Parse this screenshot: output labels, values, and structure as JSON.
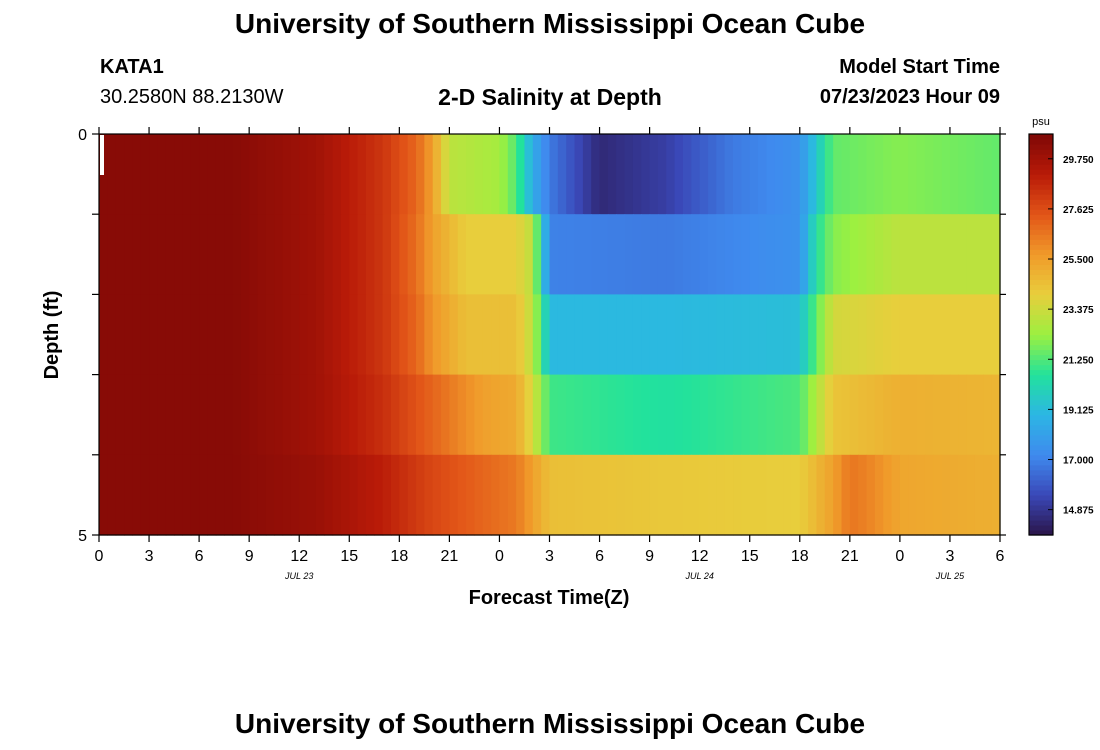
{
  "page": {
    "title": "University of Southern Mississippi Ocean Cube",
    "footer_title": "University of Southern Mississippi Ocean Cube",
    "station_name": "KATA1",
    "station_coords": "30.2580N  88.2130W",
    "plot_title": "2-D Salinity at Depth",
    "model_start_label": "Model Start Time",
    "model_start_value": "07/23/2023 Hour 09"
  },
  "colors": {
    "ramp": [
      "#2a1448",
      "#3a48b8",
      "#3f8aee",
      "#2cb6e4",
      "#22e29c",
      "#9cf040",
      "#e8ce3c",
      "#f09a2a",
      "#e25518",
      "#b81a08",
      "#7e0806"
    ]
  },
  "chart_data": {
    "type": "heatmap",
    "title": "2-D Salinity at Depth",
    "xlabel": "Forecast Time(Z)",
    "ylabel": "Depth (ft)",
    "x_hours": [
      0,
      54
    ],
    "x_tick_labels": [
      "0",
      "3",
      "6",
      "9",
      "12",
      "15",
      "18",
      "21",
      "0",
      "3",
      "6",
      "9",
      "12",
      "15",
      "18",
      "21",
      "0",
      "3",
      "6"
    ],
    "date_labels": [
      {
        "text": "JUL 23",
        "hour": 12
      },
      {
        "text": "JUL 24",
        "hour": 36
      },
      {
        "text": "JUL 25",
        "hour": 51
      }
    ],
    "y_range": [
      0,
      5
    ],
    "y_tick_labels": [
      "0",
      "5"
    ],
    "y_minor_ticks": 4,
    "layers": 5,
    "colorbar": {
      "unit": "psu",
      "min": 13.8,
      "max": 30.8,
      "tick_labels": [
        "29.750",
        "27.625",
        "25.500",
        "23.375",
        "21.250",
        "19.125",
        "17.000",
        "14.875"
      ]
    },
    "series": [
      {
        "name": "surface",
        "hours": [
          0,
          8,
          13,
          17,
          19,
          20,
          21,
          24,
          25,
          26,
          27,
          30,
          34,
          38,
          42,
          43,
          44,
          48,
          54
        ],
        "values": [
          30.5,
          30.5,
          29.8,
          28.3,
          27.0,
          25.5,
          23.0,
          22.5,
          21.3,
          18.5,
          16.8,
          14.5,
          15.2,
          16.8,
          17.5,
          19.5,
          21.5,
          22.0,
          21.5
        ]
      },
      {
        "name": "layer-2",
        "hours": [
          0,
          8,
          13,
          17,
          19,
          20,
          22,
          25,
          26,
          27,
          34,
          42,
          43,
          44,
          48,
          54
        ],
        "values": [
          30.5,
          30.5,
          29.8,
          28.3,
          26.8,
          25.5,
          24.0,
          24.0,
          23.0,
          17.0,
          16.8,
          17.5,
          20.5,
          22.0,
          23.0,
          23.0
        ]
      },
      {
        "name": "layer-3",
        "hours": [
          0,
          8,
          13,
          17,
          19,
          20,
          22,
          25,
          26,
          27,
          34,
          42,
          43,
          44,
          48,
          54
        ],
        "values": [
          30.5,
          30.5,
          29.8,
          28.3,
          27.0,
          25.8,
          24.5,
          24.5,
          23.0,
          19.0,
          19.0,
          19.2,
          21.5,
          23.5,
          24.0,
          24.0
        ]
      },
      {
        "name": "layer-4",
        "hours": [
          0,
          8,
          13,
          17,
          19,
          21,
          23,
          25,
          26,
          27,
          34,
          42,
          44,
          48,
          54
        ],
        "values": [
          30.5,
          30.5,
          29.8,
          28.5,
          27.5,
          26.5,
          25.5,
          25.2,
          23.5,
          21.0,
          20.5,
          21.2,
          24.3,
          25.0,
          24.8
        ]
      },
      {
        "name": "bottom",
        "hours": [
          0,
          8,
          13,
          17,
          20,
          23,
          25,
          26,
          27,
          34,
          42,
          44,
          45,
          46,
          48,
          54
        ],
        "values": [
          30.5,
          30.5,
          30.0,
          29.0,
          27.8,
          27.0,
          26.5,
          25.5,
          24.5,
          24.2,
          24.0,
          25.5,
          26.6,
          26.3,
          25.3,
          25.0
        ]
      }
    ]
  }
}
